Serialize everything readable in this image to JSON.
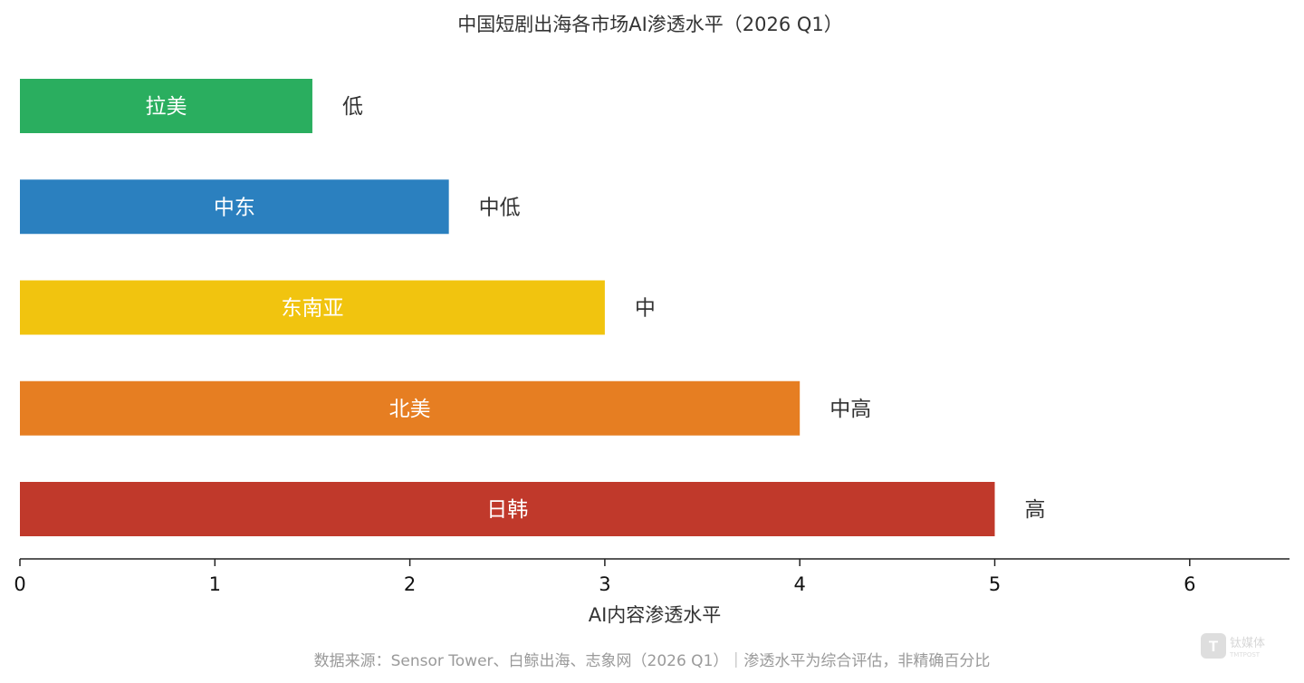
{
  "chart_data": {
    "type": "bar",
    "orientation": "horizontal",
    "title": "中国短剧出海各市场AI渗透水平（2026 Q1）",
    "xlabel": "AI内容渗透水平",
    "ylabel": "",
    "xlim": [
      0,
      6.5
    ],
    "xticks": [
      "0",
      "1",
      "2",
      "3",
      "4",
      "5",
      "6"
    ],
    "xtick_values": [
      0,
      1,
      2,
      3,
      4,
      5,
      6
    ],
    "categories": [
      "拉美",
      "中东",
      "东南亚",
      "北美",
      "日韩"
    ],
    "values": [
      1.5,
      2.2,
      3.0,
      4.0,
      5.0
    ],
    "level_labels": [
      "低",
      "中低",
      "中",
      "中高",
      "高"
    ],
    "colors": [
      "#2aae5f",
      "#2b80bf",
      "#f1c40f",
      "#e67e22",
      "#c0392b"
    ],
    "grid": false,
    "legend": "none"
  },
  "footer": {
    "source": "数据来源：Sensor Tower、白鲸出海、志象网（2026 Q1）｜渗透水平为综合评估，非精确百分比"
  },
  "watermark": {
    "text": "钛媒体",
    "sub": "TMTPOST"
  }
}
